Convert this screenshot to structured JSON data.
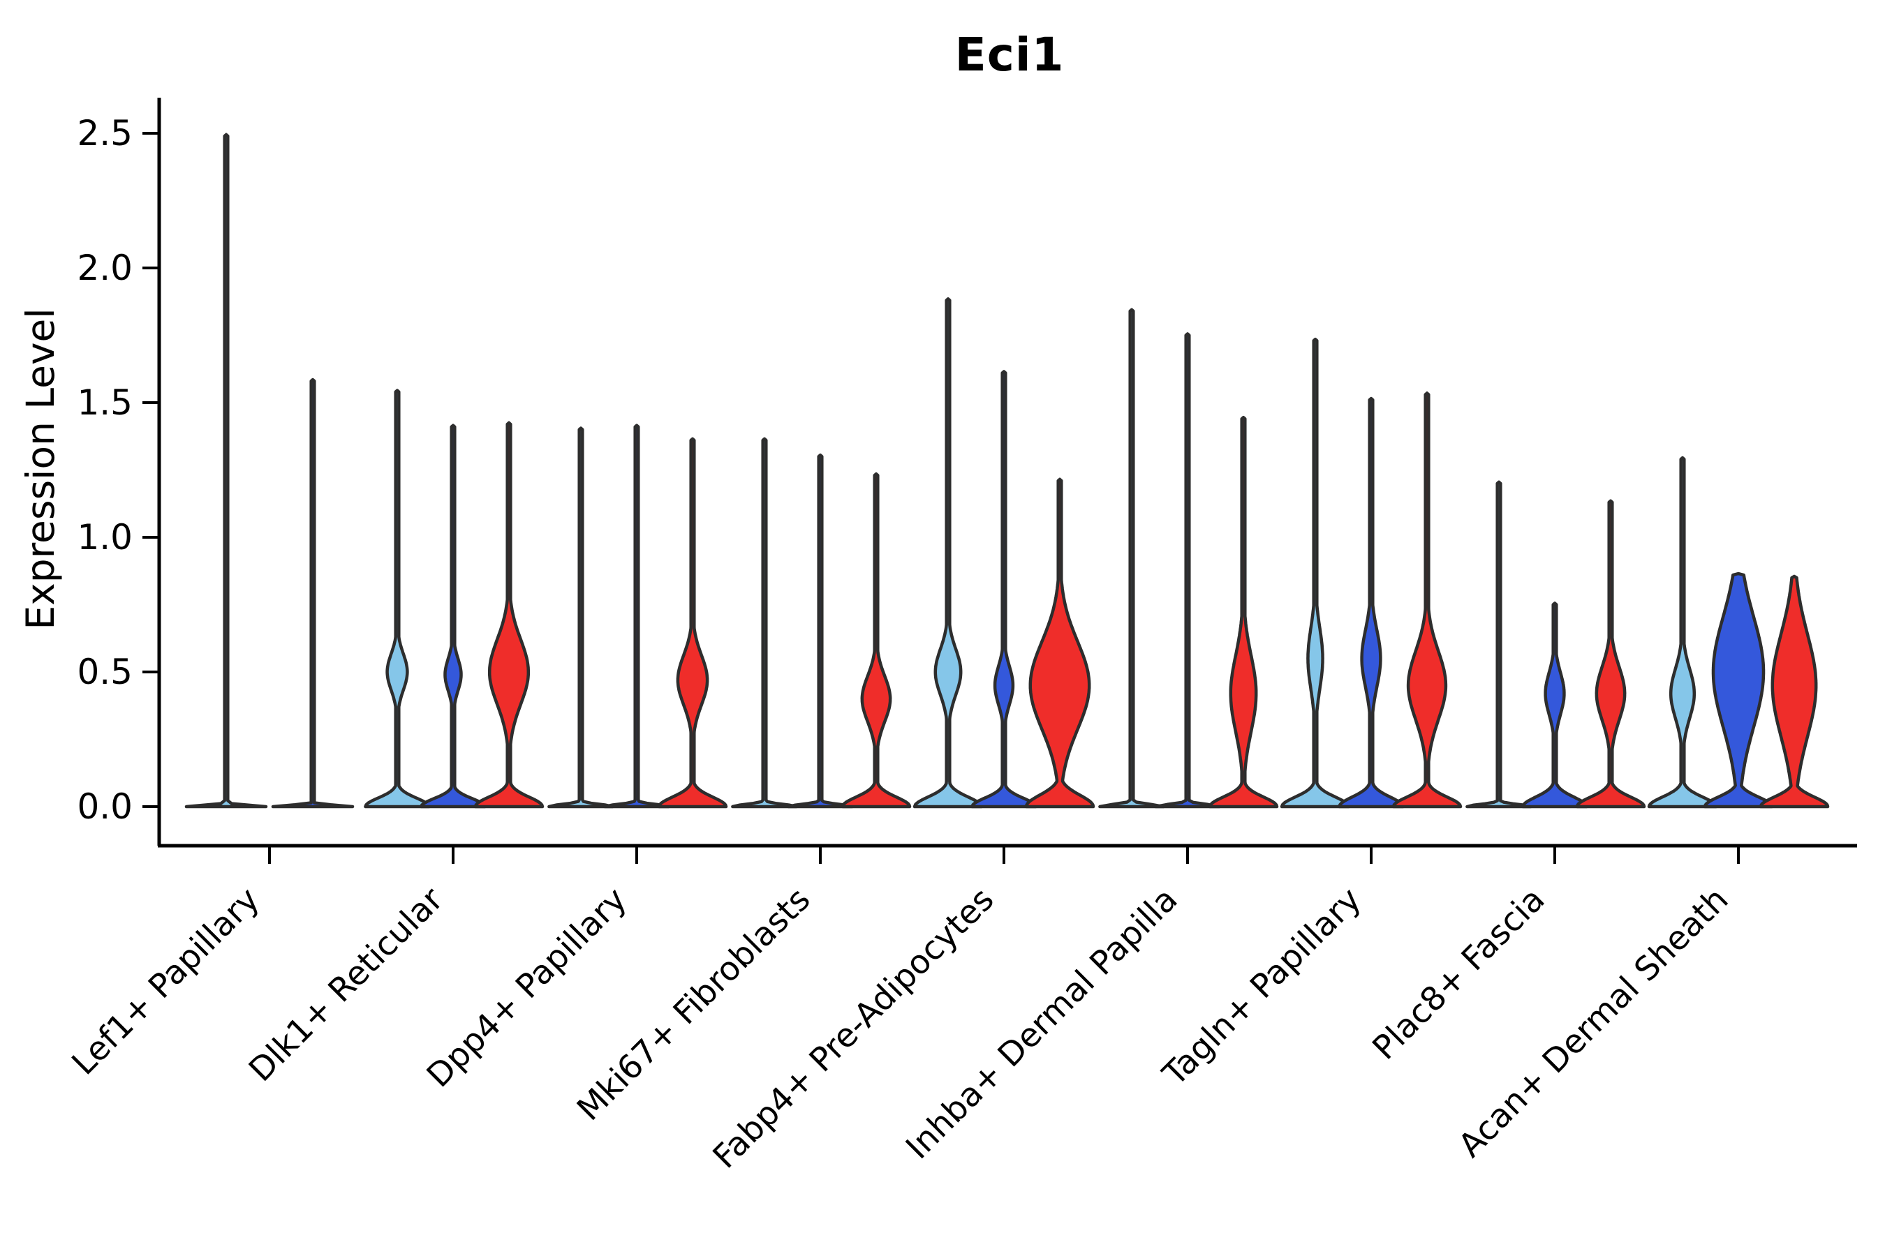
{
  "title": "Eci1",
  "ylabel": "Expression Level",
  "chart_data": {
    "type": "violin",
    "title": "Eci1",
    "ylabel": "Expression Level",
    "ylim": [
      0,
      2.6
    ],
    "yticks": [
      0.0,
      0.5,
      1.0,
      1.5,
      2.0,
      2.5
    ],
    "ytick_labels": [
      "0.0",
      "0.5",
      "1.0",
      "1.5",
      "2.0",
      "2.5"
    ],
    "grid": false,
    "legend": "none",
    "xtick_rotation": 45,
    "outline_color": "#2d2d2d",
    "splits": [
      {
        "name": "light-blue",
        "color": "#85C6E9"
      },
      {
        "name": "blue",
        "color": "#3458DB"
      },
      {
        "name": "red",
        "color": "#EF2D2A"
      }
    ],
    "categories": [
      "Lef1+ Papillary",
      "Dlk1+ Reticular",
      "Dpp4+ Papillary",
      "Mki67+ Fibroblasts",
      "Fabp4+ Pre-Adipocytes",
      "Inhba+ Dermal Papilla",
      "Tagln+ Papillary",
      "Plac8+ Fascia",
      "Acan+ Dermal Sheath"
    ],
    "violins": [
      {
        "category": "Lef1+ Papillary",
        "series": [
          {
            "split": "light-blue",
            "max": 2.49,
            "base": [
              0.95,
              0.008
            ],
            "bulge": null
          },
          {
            "split": "blue",
            "max": 1.58,
            "base": [
              0.95,
              0.008
            ],
            "bulge": null
          },
          null
        ]
      },
      {
        "category": "Dlk1+ Reticular",
        "series": [
          {
            "split": "light-blue",
            "max": 1.54,
            "base": [
              0.95,
              0.045
            ],
            "bulge": [
              0.5,
              0.095,
              0.3
            ]
          },
          {
            "split": "blue",
            "max": 1.41,
            "base": [
              0.95,
              0.042
            ],
            "bulge": [
              0.49,
              0.085,
              0.24
            ]
          },
          {
            "split": "red",
            "max": 1.42,
            "base": [
              1.0,
              0.05
            ],
            "bulge": [
              0.5,
              0.17,
              0.58
            ]
          }
        ]
      },
      {
        "category": "Dpp4+ Papillary",
        "series": [
          {
            "split": "light-blue",
            "max": 1.4,
            "base": [
              0.95,
              0.012
            ],
            "bulge": null
          },
          {
            "split": "blue",
            "max": 1.41,
            "base": [
              0.95,
              0.012
            ],
            "bulge": null
          },
          {
            "split": "red",
            "max": 1.36,
            "base": [
              1.0,
              0.05
            ],
            "bulge": [
              0.47,
              0.13,
              0.44
            ]
          }
        ]
      },
      {
        "category": "Mki67+ Fibroblasts",
        "series": [
          {
            "split": "light-blue",
            "max": 1.36,
            "base": [
              0.95,
              0.012
            ],
            "bulge": null
          },
          {
            "split": "blue",
            "max": 1.3,
            "base": [
              0.95,
              0.012
            ],
            "bulge": null
          },
          {
            "split": "red",
            "max": 1.23,
            "base": [
              1.0,
              0.05
            ],
            "bulge": [
              0.4,
              0.12,
              0.42
            ]
          }
        ]
      },
      {
        "category": "Fabp4+ Pre-Adipocytes",
        "series": [
          {
            "split": "light-blue",
            "max": 1.88,
            "base": [
              1.0,
              0.05
            ],
            "bulge": [
              0.5,
              0.12,
              0.38
            ]
          },
          {
            "split": "blue",
            "max": 1.61,
            "base": [
              0.95,
              0.045
            ],
            "bulge": [
              0.45,
              0.1,
              0.27
            ]
          },
          {
            "split": "red",
            "max": 1.21,
            "base": [
              1.0,
              0.06
            ],
            "bulge": [
              0.45,
              0.23,
              0.88
            ]
          }
        ]
      },
      {
        "category": "Inhba+ Dermal Papilla",
        "series": [
          {
            "split": "light-blue",
            "max": 1.84,
            "base": [
              0.95,
              0.012
            ],
            "bulge": null
          },
          {
            "split": "blue",
            "max": 1.75,
            "base": [
              0.95,
              0.012
            ],
            "bulge": null
          },
          {
            "split": "red",
            "max": 1.44,
            "base": [
              1.0,
              0.05
            ],
            "bulge": [
              0.42,
              0.2,
              0.38
            ]
          }
        ]
      },
      {
        "category": "Tagln+ Papillary",
        "series": [
          {
            "split": "light-blue",
            "max": 1.73,
            "base": [
              1.0,
              0.05
            ],
            "bulge": [
              0.55,
              0.16,
              0.22
            ]
          },
          {
            "split": "blue",
            "max": 1.51,
            "base": [
              0.95,
              0.05
            ],
            "bulge": [
              0.55,
              0.15,
              0.28
            ]
          },
          {
            "split": "red",
            "max": 1.53,
            "base": [
              1.0,
              0.05
            ],
            "bulge": [
              0.45,
              0.18,
              0.56
            ]
          }
        ]
      },
      {
        "category": "Plac8+ Fascia",
        "series": [
          {
            "split": "light-blue",
            "max": 1.2,
            "base": [
              0.95,
              0.012
            ],
            "bulge": null
          },
          {
            "split": "blue",
            "max": 0.75,
            "base": [
              0.95,
              0.05
            ],
            "bulge": [
              0.42,
              0.11,
              0.28
            ]
          },
          {
            "split": "red",
            "max": 1.13,
            "base": [
              1.0,
              0.05
            ],
            "bulge": [
              0.42,
              0.14,
              0.42
            ]
          }
        ]
      },
      {
        "category": "Acan+ Dermal Sheath",
        "series": [
          {
            "split": "light-blue",
            "max": 1.29,
            "base": [
              1.0,
              0.05
            ],
            "bulge": [
              0.42,
              0.13,
              0.35
            ]
          },
          {
            "split": "blue",
            "max": 0.86,
            "base": [
              1.0,
              0.05
            ],
            "bulge": [
              0.5,
              0.29,
              0.75
            ]
          },
          {
            "split": "red",
            "max": 0.85,
            "base": [
              1.0,
              0.05
            ],
            "bulge": [
              0.45,
              0.27,
              0.65
            ]
          }
        ]
      }
    ]
  }
}
